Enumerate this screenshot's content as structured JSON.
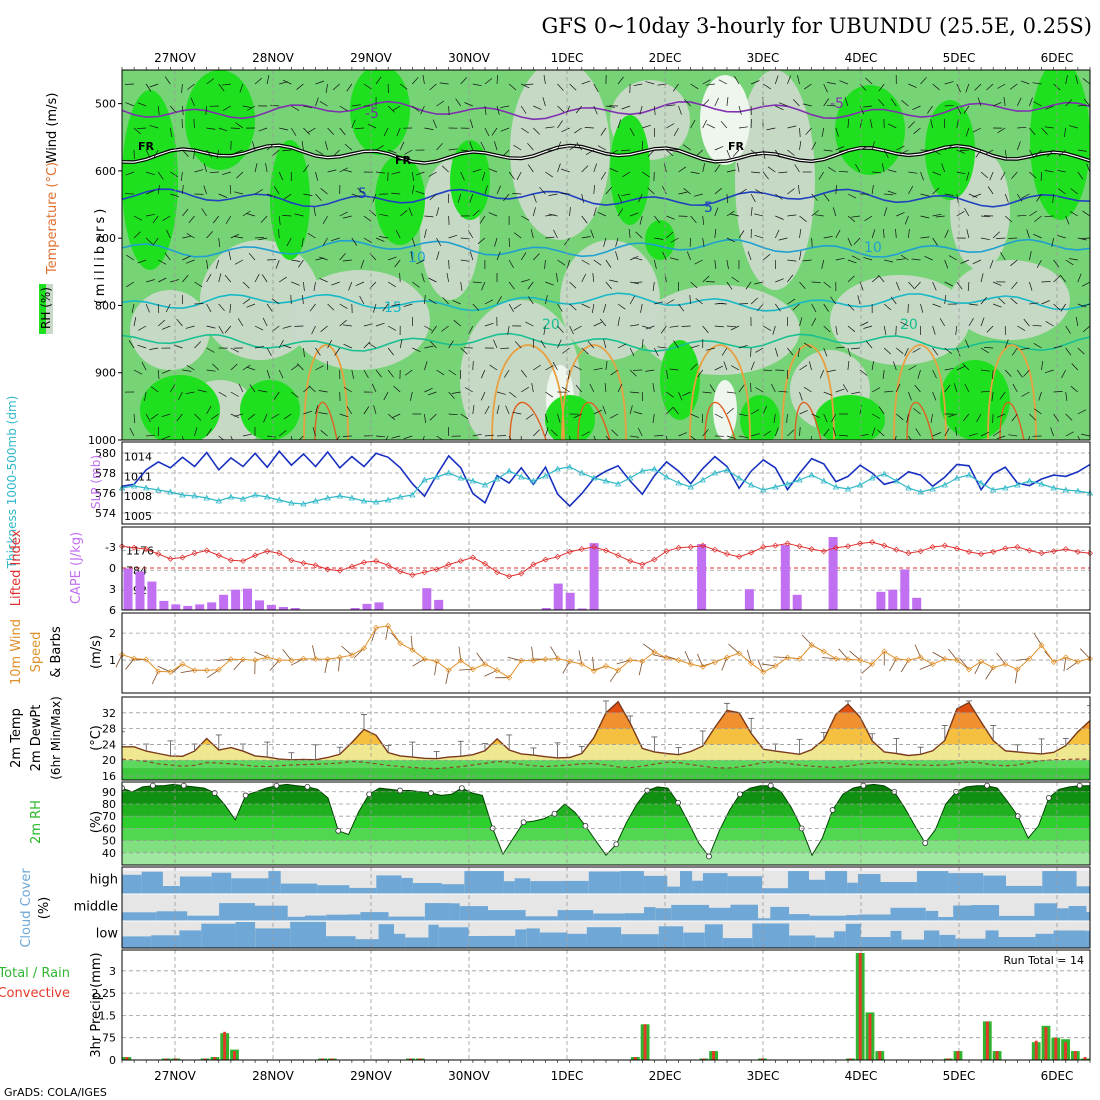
{
  "title": "GFS 0~10day 3-hourly for UBUNDU (25.5E, 0.25S)",
  "credit": "GrADS: COLA/IGES",
  "days": [
    "27NOV",
    "28NOV",
    "29NOV",
    "30NOV",
    "1DEC",
    "2DEC",
    "3DEC",
    "4DEC",
    "5DEC",
    "6DEC"
  ],
  "colors": {
    "rh_light": "#c9d9c9",
    "rh_mid": "#76d376",
    "rh_dark": "#1fe01f",
    "rain": "#2fb52f",
    "conv": "#e43a2a",
    "cloud": "#6fa8d6",
    "cape": "#c070f0",
    "lifted": "#e03030",
    "slp": "#1830c0",
    "thick": "#30b8c8",
    "wind": "#e0902a",
    "temp_fill": "#f0e890",
    "rh2m": "#28b828"
  },
  "chart_data": [
    {
      "type": "heatmap",
      "name": "upper",
      "ylabels_left": [
        "Wind (m/s)",
        "Temperature (°C)",
        "RH (%)"
      ],
      "ylabel": "(millibars)",
      "yticks": [
        500,
        600,
        700,
        800,
        900,
        1000
      ],
      "ylim": [
        1000,
        450
      ],
      "freezing_label": "FR",
      "isotherms": [
        {
          "label": "-5",
          "p": 510
        },
        {
          "label": "FR",
          "p": 575
        },
        {
          "label": "5",
          "p": 640
        },
        {
          "label": "10",
          "p": 715
        },
        {
          "label": "15",
          "p": 795
        },
        {
          "label": "20",
          "p": 855
        }
      ]
    },
    {
      "type": "line",
      "name": "thickness-slp",
      "ylabel_left": "Thickness 1000-500mb (dm)",
      "ylabel_right": "SLP (mb)",
      "yticks_left": [
        574,
        576,
        578,
        580
      ],
      "yticks_right": [
        1005,
        1008,
        1011,
        1014
      ],
      "slp": [
        1009.5,
        1009.8,
        1012.0,
        1013.2,
        1012.3,
        1013.9,
        1012.5,
        1014.6,
        1012.0,
        1013.8,
        1012.5,
        1014.5,
        1012.4,
        1014.8,
        1012.7,
        1014.4,
        1012.5,
        1014.7,
        1012.3,
        1014.0,
        1012.5,
        1014.5,
        1013.9,
        1012.3,
        1009.9,
        1008.0,
        1011.2,
        1014.1,
        1012.3,
        1008.4,
        1007.0,
        1011.1,
        1010.0,
        1012.3,
        1009.8,
        1012.4,
        1008.3,
        1006.5,
        1008.4,
        1010.7,
        1011.8,
        1012.6,
        1010.3,
        1008.3,
        1011.1,
        1013.2,
        1011.8,
        1009.9,
        1012.2,
        1014.0,
        1012.5,
        1009.2,
        1011.8,
        1013.5,
        1012.3,
        1009.0,
        1011.5,
        1013.7,
        1012.9,
        1010.2,
        1011.0,
        1012.7,
        1011.5,
        1009.8,
        1010.3,
        1011.7,
        1011.2,
        1009.5,
        1010.9,
        1012.8,
        1012.6,
        1009.0,
        1011.4,
        1012.4,
        1010.0,
        1009.6,
        1010.6,
        1011.2,
        1011.0,
        1011.7,
        1012.8
      ],
      "thickness": [
        576.5,
        576.7,
        576.5,
        576.3,
        576.1,
        575.8,
        575.7,
        575.5,
        575.2,
        575.6,
        575.4,
        575.8,
        575.6,
        575.3,
        575.0,
        574.9,
        575.2,
        575.5,
        575.7,
        575.5,
        575.2,
        575.1,
        575.3,
        575.6,
        575.8,
        577.3,
        577.6,
        578.0,
        577.5,
        577.2,
        576.8,
        577.4,
        578.2,
        577.6,
        577.2,
        577.7,
        578.4,
        578.6,
        578.0,
        577.5,
        577.2,
        576.9,
        577.5,
        578.2,
        578.4,
        577.6,
        577.0,
        576.6,
        577.3,
        578.0,
        578.3,
        577.5,
        576.8,
        576.3,
        576.6,
        576.9,
        577.3,
        577.8,
        577.2,
        576.6,
        576.4,
        576.8,
        577.5,
        577.9,
        577.2,
        576.5,
        576.1,
        576.4,
        576.8,
        577.5,
        577.8,
        577.0,
        576.3,
        576.5,
        576.8,
        577.2,
        576.9,
        576.5,
        576.3,
        576.2,
        576.0
      ]
    },
    {
      "type": "bar",
      "name": "cape-li",
      "ylabel_left": "Lifted Index",
      "ylabel_right": "CAPE (J/kg)",
      "yticks_left": [
        -3,
        0,
        3,
        6
      ],
      "yticks_right": [
        392,
        784,
        1176
      ],
      "cape": [
        820,
        760,
        560,
        180,
        110,
        80,
        110,
        150,
        300,
        400,
        420,
        190,
        100,
        60,
        40,
        0,
        0,
        0,
        0,
        40,
        120,
        150,
        0,
        0,
        0,
        430,
        200,
        0,
        0,
        0,
        0,
        0,
        0,
        0,
        0,
        40,
        520,
        340,
        30,
        1320,
        0,
        0,
        0,
        0,
        0,
        0,
        0,
        0,
        1300,
        0,
        0,
        0,
        410,
        0,
        0,
        1280,
        300,
        0,
        0,
        1440,
        0,
        0,
        0,
        360,
        400,
        800,
        240,
        0,
        0,
        0,
        0,
        0,
        0,
        0,
        0,
        0,
        0,
        0,
        0,
        0,
        0
      ],
      "li": [
        -3.1,
        -2.9,
        -2.7,
        -2.0,
        -1.3,
        -1.5,
        -2.1,
        -2.5,
        -1.8,
        -1.1,
        -1.0,
        -1.8,
        -2.4,
        -2.1,
        -1.1,
        -0.7,
        -0.4,
        0.2,
        0.4,
        -0.2,
        -0.8,
        -1.0,
        -0.4,
        0.5,
        1.0,
        0.6,
        0.2,
        -0.5,
        -1.0,
        -1.5,
        -0.6,
        0.6,
        1.2,
        0.8,
        -0.5,
        -1.2,
        -1.6,
        -2.3,
        -2.7,
        -3.0,
        -2.5,
        -1.8,
        -1.0,
        -0.5,
        -1.2,
        -2.4,
        -2.9,
        -3.0,
        -3.2,
        -2.6,
        -2.0,
        -1.6,
        -2.2,
        -3.0,
        -3.2,
        -3.5,
        -3.1,
        -2.7,
        -2.4,
        -2.9,
        -3.1,
        -3.5,
        -3.7,
        -3.2,
        -2.6,
        -2.1,
        -2.4,
        -3.0,
        -3.2,
        -2.8,
        -2.3,
        -2.0,
        -2.3,
        -2.8,
        -3.0,
        -2.5,
        -2.1,
        -2.4,
        -2.7,
        -2.3,
        -2.1
      ]
    },
    {
      "type": "line",
      "name": "wind10m",
      "ylabel": "10m Wind Speed & Barbs (m/s)",
      "yticks": [
        1,
        2
      ],
      "values": [
        1.2,
        1.06,
        1.02,
        0.58,
        0.56,
        0.85,
        0.62,
        0.62,
        0.64,
        1.03,
        1.02,
        1.0,
        1.1,
        1.0,
        0.99,
        1.05,
        1.04,
        1.03,
        1.1,
        1.18,
        1.44,
        2.2,
        2.27,
        1.62,
        1.38,
        1.04,
        0.95,
        0.62,
        0.98,
        0.66,
        0.85,
        0.62,
        0.35,
        0.98,
        0.98,
        1.03,
        1.06,
        0.95,
        0.85,
        0.6,
        0.78,
        0.62,
        1.0,
        0.95,
        1.3,
        1.08,
        1.0,
        0.85,
        0.75,
        0.92,
        1.1,
        1.25,
        0.88,
        0.55,
        0.78,
        1.09,
        1.05,
        1.56,
        1.32,
        1.05,
        1.03,
        1.0,
        0.85,
        1.32,
        1.05,
        1.0,
        1.1,
        0.85,
        1.04,
        1.0,
        0.65,
        0.95,
        0.72,
        0.85,
        0.65,
        1.05,
        1.55,
        0.93,
        1.1,
        0.94,
        1.05
      ]
    },
    {
      "type": "area",
      "name": "temp2m",
      "ylabel": "2m Temp 2m DewPt (6hr Min/Max) (°C)",
      "yticks": [
        16,
        20,
        24,
        28,
        32
      ],
      "temp": [
        23.4,
        23.4,
        22.3,
        21.7,
        21.1,
        21.0,
        22.3,
        25.5,
        22.6,
        23.2,
        22.3,
        21.1,
        20.8,
        20.3,
        20.1,
        20.2,
        20.1,
        20.7,
        21.5,
        24.5,
        27.8,
        26.3,
        21.9,
        21.1,
        20.8,
        20.5,
        20.4,
        20.8,
        21.0,
        21.4,
        22.4,
        25.4,
        22.6,
        21.6,
        21.3,
        20.9,
        20.6,
        20.7,
        21.7,
        25.7,
        32.0,
        34.8,
        29.4,
        23.0,
        22.1,
        21.7,
        21.4,
        22.2,
        23.6,
        28.3,
        32.6,
        32.0,
        26.8,
        22.8,
        22.3,
        21.9,
        21.5,
        22.7,
        25.2,
        31.6,
        34.2,
        30.9,
        24.9,
        22.1,
        21.7,
        21.2,
        21.5,
        22.4,
        25.0,
        33.0,
        34.6,
        29.7,
        25.0,
        22.4,
        22.1,
        21.8,
        21.6,
        22.0,
        23.7,
        27.2,
        30.0
      ],
      "dewpt": [
        20.3,
        20.0,
        19.7,
        19.1,
        18.8,
        18.5,
        18.7,
        19.4,
        19.3,
        19.1,
        18.8,
        18.5,
        18.4,
        18.6,
        18.8,
        18.9,
        19.0,
        19.1,
        19.3,
        19.7,
        19.5,
        19.1,
        18.7,
        18.4,
        18.2,
        18.0,
        17.9,
        18.1,
        18.4,
        18.8,
        19.2,
        19.7,
        19.5,
        19.0,
        18.6,
        18.4,
        18.6,
        18.8,
        19.1,
        19.2,
        18.8,
        18.3,
        18.1,
        18.5,
        19.0,
        19.5,
        19.4,
        18.9,
        18.5,
        18.1,
        18.0,
        18.3,
        18.8,
        19.4,
        19.6,
        19.2,
        18.8,
        18.5,
        18.3,
        18.2,
        18.5,
        19.0,
        19.3,
        19.4,
        19.1,
        18.9,
        18.8,
        18.7,
        18.8,
        19.2,
        19.6,
        19.3,
        18.8,
        18.6,
        18.8,
        19.4,
        19.9,
        20.1,
        20.2,
        20.3,
        20.3
      ]
    },
    {
      "type": "area",
      "name": "rh2m",
      "ylabel": "2m RH (%)",
      "yticks": [
        40,
        50,
        60,
        70,
        80,
        90
      ],
      "values": [
        93,
        90,
        94,
        95,
        95,
        96,
        95,
        94,
        93,
        89,
        79,
        67,
        87,
        90,
        93,
        95,
        96,
        95,
        94,
        92,
        85,
        58,
        55,
        74,
        88,
        93,
        92,
        91,
        91,
        90,
        89,
        87,
        88,
        93,
        89,
        87,
        60,
        39,
        52,
        65,
        66,
        68,
        72,
        80,
        73,
        62,
        50,
        38,
        47,
        65,
        80,
        91,
        94,
        93,
        81,
        65,
        48,
        37,
        58,
        75,
        88,
        93,
        95,
        95,
        90,
        77,
        60,
        38,
        52,
        75,
        88,
        93,
        95,
        96,
        95,
        90,
        77,
        62,
        48,
        59,
        80,
        90,
        94,
        95,
        95,
        93,
        82,
        70,
        52,
        62,
        85,
        92,
        94,
        95,
        95
      ]
    },
    {
      "type": "area",
      "name": "cloud",
      "ylabel": "Cloud Cover (%)",
      "levels": [
        "high",
        "middle",
        "low"
      ]
    },
    {
      "type": "bar",
      "name": "precip",
      "ylabel_left": "Total / Rain",
      "ylabel_left2": "Convective",
      "ylabel": "3hr Precip (mm)",
      "yticks": [
        0,
        0.75,
        1.5,
        2.25,
        3
      ],
      "yticklabels": [
        "0",
        ".75",
        "1.5",
        "2.25",
        "3"
      ],
      "run_total_label": "Run Total = 14",
      "total": [
        0.1,
        0,
        0,
        0,
        0.05,
        0.05,
        0,
        0,
        0.05,
        0.1,
        0.9,
        0.35,
        0,
        0,
        0,
        0,
        0,
        0,
        0,
        0,
        0.05,
        0.05,
        0,
        0,
        0,
        0,
        0,
        0,
        0,
        0.05,
        0.05,
        0,
        0,
        0,
        0,
        0,
        0,
        0,
        0,
        0,
        0,
        0,
        0,
        0,
        0,
        0,
        0,
        0,
        0,
        0,
        0,
        0,
        0.1,
        1.2,
        0,
        0,
        0,
        0,
        0,
        0.05,
        0.3,
        0,
        0,
        0,
        0,
        0.05,
        0,
        0,
        0,
        0,
        0,
        0,
        0,
        0,
        0.05,
        3.6,
        1.6,
        0.3,
        0,
        0,
        0,
        0,
        0,
        0,
        0.05,
        0.3,
        0,
        0,
        1.3,
        0.3,
        0,
        0,
        0,
        0.6,
        1.15,
        0.75,
        0.7,
        0.3,
        0.05
      ],
      "conv": [
        0.1,
        0,
        0,
        0,
        0.05,
        0.05,
        0,
        0,
        0.05,
        0.1,
        0.95,
        0.3,
        0,
        0,
        0,
        0,
        0,
        0,
        0,
        0,
        0.05,
        0.05,
        0,
        0,
        0,
        0,
        0,
        0,
        0,
        0.05,
        0.05,
        0,
        0,
        0,
        0,
        0,
        0,
        0,
        0,
        0,
        0,
        0,
        0,
        0,
        0,
        0,
        0,
        0,
        0,
        0,
        0,
        0,
        0.1,
        1.2,
        0,
        0,
        0,
        0,
        0,
        0.05,
        0.3,
        0,
        0,
        0,
        0,
        0.05,
        0,
        0,
        0,
        0,
        0,
        0,
        0,
        0,
        0.05,
        3.6,
        1.55,
        0.3,
        0,
        0,
        0,
        0,
        0,
        0,
        0.05,
        0.3,
        0,
        0,
        1.3,
        0.3,
        0,
        0,
        0,
        0.65,
        1.1,
        0.75,
        0.6,
        0.3,
        0.1
      ]
    }
  ]
}
